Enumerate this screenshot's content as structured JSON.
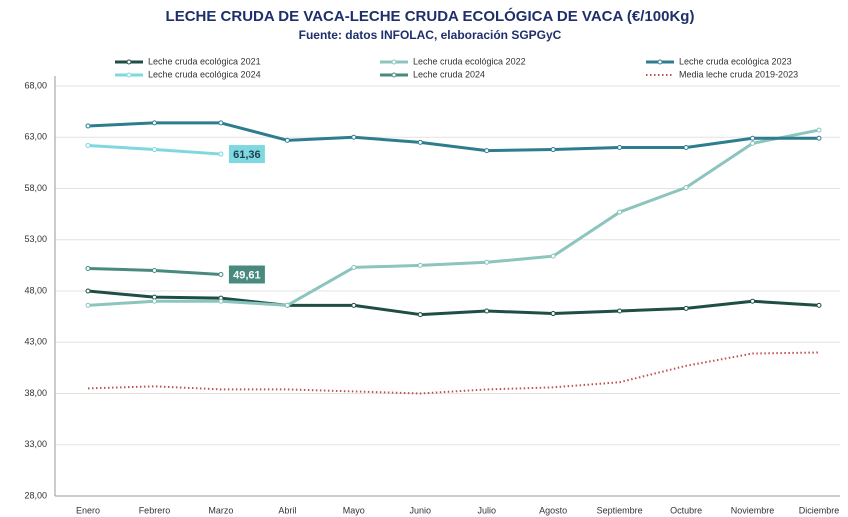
{
  "chart_data": {
    "type": "line",
    "title": "LECHE CRUDA DE VACA-LECHE CRUDA ECOLÓGICA DE VACA (€/100Kg)",
    "subtitle": "Fuente: datos INFOLAC, elaboración SGPGyC",
    "categories": [
      "Enero",
      "Febrero",
      "Marzo",
      "Abril",
      "Mayo",
      "Junio",
      "Julio",
      "Agosto",
      "Septiembre",
      "Octubre",
      "Noviembre",
      "Diciembre"
    ],
    "ylim": [
      28,
      68
    ],
    "yticks": [
      {
        "value": 28,
        "label": "28,00"
      },
      {
        "value": 33,
        "label": "33,00"
      },
      {
        "value": 38,
        "label": "38,00"
      },
      {
        "value": 43,
        "label": "43,00"
      },
      {
        "value": 48,
        "label": "48,00"
      },
      {
        "value": 53,
        "label": "53,00"
      },
      {
        "value": 58,
        "label": "58,00"
      },
      {
        "value": 63,
        "label": "63,00"
      },
      {
        "value": 68,
        "label": "68,00"
      }
    ],
    "grid": true,
    "legend": "top",
    "series": [
      {
        "name": "Leche cruda ecológica 2021",
        "color": "#1f4e44",
        "style": "solid",
        "values": [
          48.0,
          47.4,
          47.3,
          46.6,
          46.6,
          45.7,
          46.05,
          45.8,
          46.05,
          46.3,
          47.0,
          46.6
        ]
      },
      {
        "name": "Leche cruda ecológica 2022",
        "color": "#8cc5bd",
        "style": "solid",
        "values": [
          46.6,
          47.0,
          47.0,
          46.6,
          50.3,
          50.5,
          50.8,
          51.4,
          55.7,
          58.1,
          62.4,
          63.7
        ]
      },
      {
        "name": "Leche cruda ecológica 2023",
        "color": "#2e7d8f",
        "style": "solid",
        "values": [
          64.1,
          64.4,
          64.4,
          62.7,
          63.0,
          62.5,
          61.7,
          61.8,
          62.0,
          62.0,
          62.9,
          62.9
        ]
      },
      {
        "name": "Leche cruda ecológica 2024",
        "color": "#7fd8e0",
        "style": "solid",
        "values": [
          62.2,
          61.8,
          61.36,
          null,
          null,
          null,
          null,
          null,
          null,
          null,
          null,
          null
        ],
        "value_labels": [
          null,
          null,
          "61,36",
          null,
          null,
          null,
          null,
          null,
          null,
          null,
          null,
          null
        ]
      },
      {
        "name": "Leche cruda 2024",
        "color": "#4a8a7e",
        "style": "solid",
        "values": [
          50.2,
          50.0,
          49.61,
          null,
          null,
          null,
          null,
          null,
          null,
          null,
          null,
          null
        ],
        "value_labels": [
          null,
          null,
          "49,61",
          null,
          null,
          null,
          null,
          null,
          null,
          null,
          null,
          null
        ]
      },
      {
        "name": "Media leche cruda 2019-2023",
        "color": "#c0504d",
        "style": "dotted",
        "values": [
          38.5,
          38.7,
          38.4,
          38.4,
          38.2,
          38.0,
          38.4,
          38.6,
          39.1,
          40.7,
          41.9,
          42.0
        ]
      }
    ]
  }
}
